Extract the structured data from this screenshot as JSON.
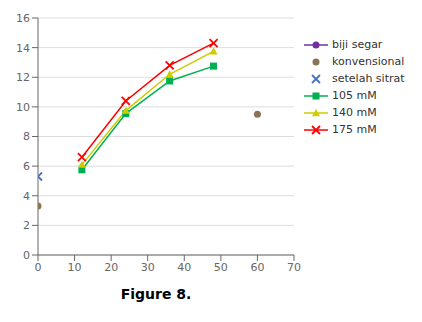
{
  "chart_data": {
    "type": "line",
    "title": "Figure 8.",
    "xlim": [
      0,
      70
    ],
    "ylim": [
      0,
      16
    ],
    "xticks": [
      0,
      10,
      20,
      30,
      40,
      50,
      60,
      70
    ],
    "yticks": [
      0,
      2,
      4,
      6,
      8,
      10,
      12,
      14,
      16
    ],
    "grid": "y",
    "legend": "right",
    "series": [
      {
        "name": "biji segar",
        "color": "#7030A0",
        "marker": "circle",
        "line_style": "solid",
        "x": [],
        "values": []
      },
      {
        "name": "konvensional",
        "color": "#8B7355",
        "marker": "circle",
        "line_style": "none",
        "x": [
          0,
          60
        ],
        "values": [
          3.3,
          9.5
        ]
      },
      {
        "name": "setelah sitrat",
        "color": "#4472C4",
        "marker": "x",
        "line_style": "none",
        "x": [
          0
        ],
        "values": [
          5.3
        ]
      },
      {
        "name": "105 mM",
        "color": "#00B050",
        "marker": "square",
        "line_style": "solid",
        "x": [
          12,
          24,
          36,
          48
        ],
        "values": [
          5.75,
          9.55,
          11.75,
          12.75
        ]
      },
      {
        "name": "140 mM",
        "color": "#CCCC00",
        "marker": "triangle",
        "line_style": "solid",
        "x": [
          12,
          24,
          36,
          48
        ],
        "values": [
          6.1,
          9.75,
          12.2,
          13.75
        ]
      },
      {
        "name": "175 mM",
        "color": "#FF0000",
        "marker": "x",
        "line_style": "solid",
        "x": [
          12,
          24,
          36,
          48
        ],
        "values": [
          6.6,
          10.4,
          12.8,
          14.3
        ]
      }
    ]
  }
}
